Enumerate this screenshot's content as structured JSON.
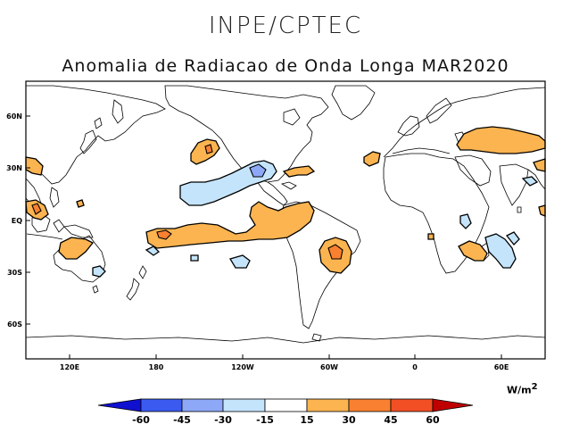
{
  "header": {
    "institution": "INPE/CPTEC",
    "title": "Anomalia de Radiacao de Onda Longa MAR2020"
  },
  "map": {
    "lat_labels": [
      "60N",
      "30N",
      "EQ",
      "30S",
      "60S"
    ],
    "lon_labels": [
      "120E",
      "180",
      "120W",
      "60W",
      "0",
      "60E"
    ]
  },
  "colorbar": {
    "units_base": "W/m",
    "units_exp": "2",
    "ticks": [
      "-60",
      "-45",
      "-30",
      "-15",
      "15",
      "30",
      "45",
      "60"
    ],
    "colors": {
      "lt_m60": "#1010d0",
      "m60_m45": "#3b5bf0",
      "m45_m30": "#8ea8f8",
      "m30_m15": "#c4e4fc",
      "m15_15": "#ffffff",
      "p15_30": "#fbb450",
      "p30_45": "#f98030",
      "p45_60": "#f24f25",
      "gt_60": "#c00000"
    }
  }
}
